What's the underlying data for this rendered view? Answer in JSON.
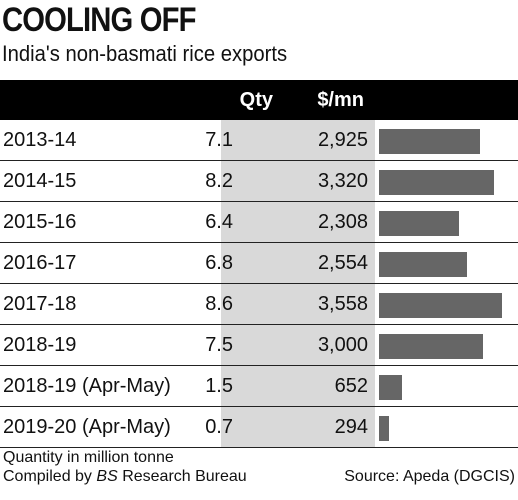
{
  "title": "COOLING OFF",
  "subtitle": "India's non-basmati rice exports",
  "columns": {
    "qty": "Qty",
    "usd": "$/mn"
  },
  "chart_data": {
    "type": "table",
    "title": "COOLING OFF",
    "subtitle": "India's non-basmati rice exports",
    "bar_color": "#666666",
    "rows": [
      {
        "period": "2013-14",
        "qty": "7.1",
        "usd": "2,925",
        "usd_value": 2925
      },
      {
        "period": "2014-15",
        "qty": "8.2",
        "usd": "3,320",
        "usd_value": 3320
      },
      {
        "period": "2015-16",
        "qty": "6.4",
        "usd": "2,308",
        "usd_value": 2308
      },
      {
        "period": "2016-17",
        "qty": "6.8",
        "usd": "2,554",
        "usd_value": 2554
      },
      {
        "period": "2017-18",
        "qty": "8.6",
        "usd": "3,558",
        "usd_value": 3558
      },
      {
        "period": "2018-19",
        "qty": "7.5",
        "usd": "3,000",
        "usd_value": 3000
      },
      {
        "period": "2018-19 (Apr-May)",
        "qty": "1.5",
        "usd": "652",
        "usd_value": 652
      },
      {
        "period": "2019-20 (Apr-May)",
        "qty": "0.7",
        "usd": "294",
        "usd_value": 294
      }
    ]
  },
  "notes": {
    "unit": "Quantity in million tonne",
    "compiled_prefix": "Compiled by",
    "compiled_org": "BS",
    "compiled_suffix": "Research Bureau",
    "source": "Source: Apeda (DGCIS)"
  }
}
